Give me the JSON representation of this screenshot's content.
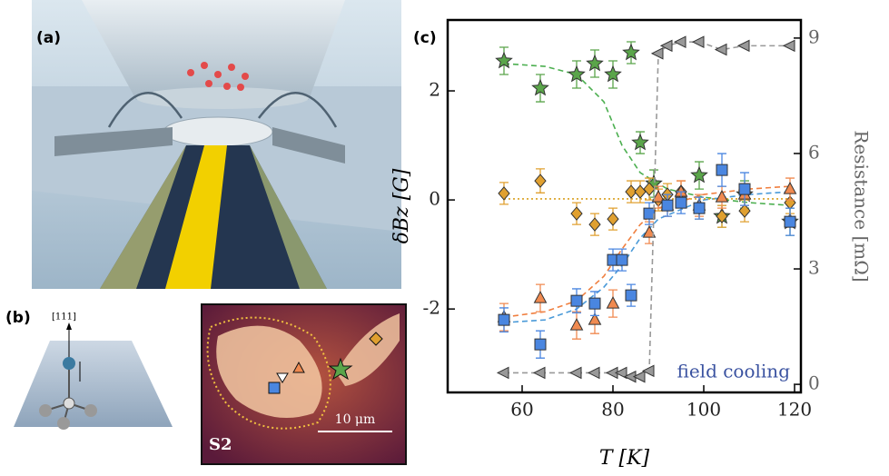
{
  "figure": {
    "panel_labels": [
      "(a)",
      "(b)",
      "(c)"
    ],
    "axis_label": "[111]",
    "sample": "S2",
    "scale_bar": "10 μm"
  },
  "chart_data": {
    "type": "scatter",
    "xlabel": "T [K]",
    "ylabel": "δBz [G]",
    "y2label": "Resistance [mΩ]",
    "annotation": "field cooling",
    "xlim": [
      43.6,
      121.4
    ],
    "xticks": [
      60,
      80,
      100,
      120
    ],
    "ylim": [
      -3.53,
      3.3
    ],
    "yticks": [
      -2,
      0,
      2
    ],
    "y2lim": [
      -0.21,
      9.47
    ],
    "y2ticks": [
      0,
      3,
      6,
      9
    ],
    "series": [
      {
        "marker": "none",
        "line": "dashed",
        "color": "#4caf50",
        "x": [
          56,
          65,
          72,
          78,
          82,
          86,
          92,
          100,
          110,
          119
        ],
        "values": [
          2.5,
          2.45,
          2.3,
          1.8,
          1.0,
          0.5,
          0.2,
          0.05,
          -0.05,
          -0.1
        ]
      },
      {
        "marker": "none",
        "line": "dashed",
        "color": "#f07f3f",
        "x": [
          56,
          65,
          72,
          78,
          82,
          86,
          90,
          100,
          110,
          119
        ],
        "values": [
          -2.15,
          -2.05,
          -1.85,
          -1.4,
          -0.9,
          -0.45,
          -0.15,
          0.1,
          0.2,
          0.25
        ]
      },
      {
        "marker": "none",
        "line": "dashed",
        "color": "#4a9ad8",
        "x": [
          56,
          65,
          72,
          78,
          82,
          86,
          90,
          100,
          110,
          119
        ],
        "values": [
          -2.25,
          -2.2,
          -2.0,
          -1.6,
          -1.2,
          -0.7,
          -0.35,
          0.0,
          0.1,
          0.15
        ]
      },
      {
        "marker": "none",
        "line": "dotted",
        "color": "#d9a020",
        "x": [
          56,
          119
        ],
        "values": [
          0.02,
          0.02
        ]
      },
      {
        "marker": "star",
        "color": "#5aa54a",
        "x": [
          56,
          64,
          72,
          76,
          80,
          84,
          86,
          89,
          99,
          104,
          109,
          119
        ],
        "values": [
          2.55,
          2.05,
          2.3,
          2.5,
          2.3,
          2.7,
          1.05,
          0.3,
          0.45,
          -0.3,
          0.1,
          -0.4
        ],
        "errors": [
          0.25,
          0.25,
          0.25,
          0.25,
          0.25,
          0.2,
          0.2,
          0.25,
          0.25,
          0.2,
          0.25,
          0.25
        ]
      },
      {
        "marker": "diamond",
        "color": "#e0a030",
        "x": [
          56,
          64,
          72,
          76,
          80,
          84,
          86,
          88,
          90,
          92,
          95,
          99,
          104,
          109,
          119
        ],
        "values": [
          0.12,
          0.35,
          -0.25,
          -0.45,
          -0.35,
          0.15,
          0.15,
          0.2,
          0.0,
          0.1,
          0.15,
          -0.15,
          -0.3,
          -0.2,
          -0.05
        ],
        "errors": [
          0.2,
          0.22,
          0.2,
          0.2,
          0.2,
          0.2,
          0.2,
          0.2,
          0.2,
          0.2,
          0.2,
          0.2,
          0.2,
          0.2,
          0.2
        ]
      },
      {
        "marker": "triangle",
        "color": "#f08a50",
        "x": [
          56,
          64,
          72,
          76,
          80,
          88,
          90,
          92,
          95,
          99,
          104,
          109,
          119
        ],
        "values": [
          -2.15,
          -1.8,
          -2.3,
          -2.2,
          -1.9,
          -0.6,
          0.05,
          -0.1,
          0.15,
          -0.1,
          0.05,
          0.1,
          0.2
        ],
        "errors": [
          0.25,
          0.25,
          0.25,
          0.25,
          0.25,
          0.2,
          0.2,
          0.2,
          0.2,
          0.2,
          0.2,
          0.2,
          0.2
        ]
      },
      {
        "marker": "square",
        "color": "#4a86e0",
        "x": [
          56,
          64,
          72,
          76,
          80,
          82,
          84,
          88,
          92,
          95,
          99,
          104,
          109,
          119
        ],
        "values": [
          -2.2,
          -2.65,
          -1.85,
          -1.9,
          -1.1,
          -1.1,
          -1.75,
          -0.25,
          -0.1,
          -0.05,
          -0.15,
          0.55,
          0.2,
          -0.4
        ],
        "errors": [
          0.22,
          0.25,
          0.22,
          0.22,
          0.2,
          0.2,
          0.2,
          0.2,
          0.2,
          0.2,
          0.2,
          0.3,
          0.3,
          0.25
        ]
      },
      {
        "marker": "triangle-left",
        "line": "dashed",
        "axis": "y2",
        "color": "#999999",
        "x": [
          56,
          64,
          72,
          76,
          80,
          82,
          84,
          86,
          88,
          90,
          92,
          95,
          99,
          104,
          109,
          119
        ],
        "values": [
          0.3,
          0.3,
          0.3,
          0.3,
          0.3,
          0.3,
          0.2,
          0.2,
          0.35,
          8.6,
          8.8,
          8.9,
          8.9,
          8.7,
          8.8,
          8.8
        ]
      }
    ]
  }
}
